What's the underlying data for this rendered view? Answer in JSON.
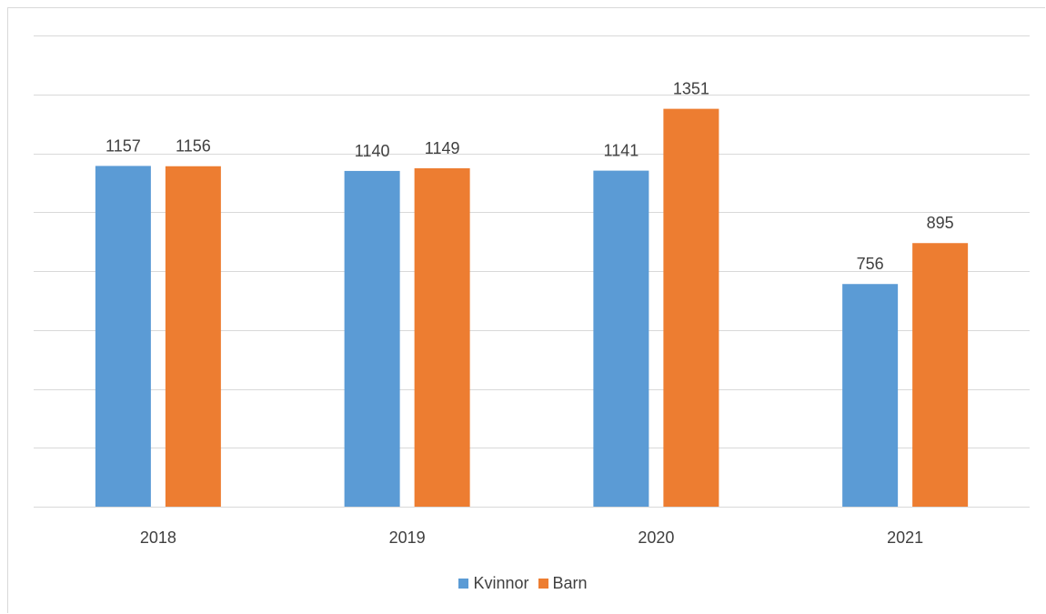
{
  "chart_data": {
    "type": "bar",
    "categories": [
      "2018",
      "2019",
      "2020",
      "2021"
    ],
    "series": [
      {
        "name": "Kvinnor",
        "values": [
          1157,
          1140,
          1141,
          756
        ],
        "color": "#5b9bd5"
      },
      {
        "name": "Barn",
        "values": [
          1156,
          1149,
          1351,
          895
        ],
        "color": "#ed7d31"
      }
    ],
    "ylim": [
      0,
      1600
    ],
    "y_gridline_step": 200,
    "y_tick_labels_visible": false,
    "grid": true,
    "legend": "bottom",
    "data_labels": true
  }
}
